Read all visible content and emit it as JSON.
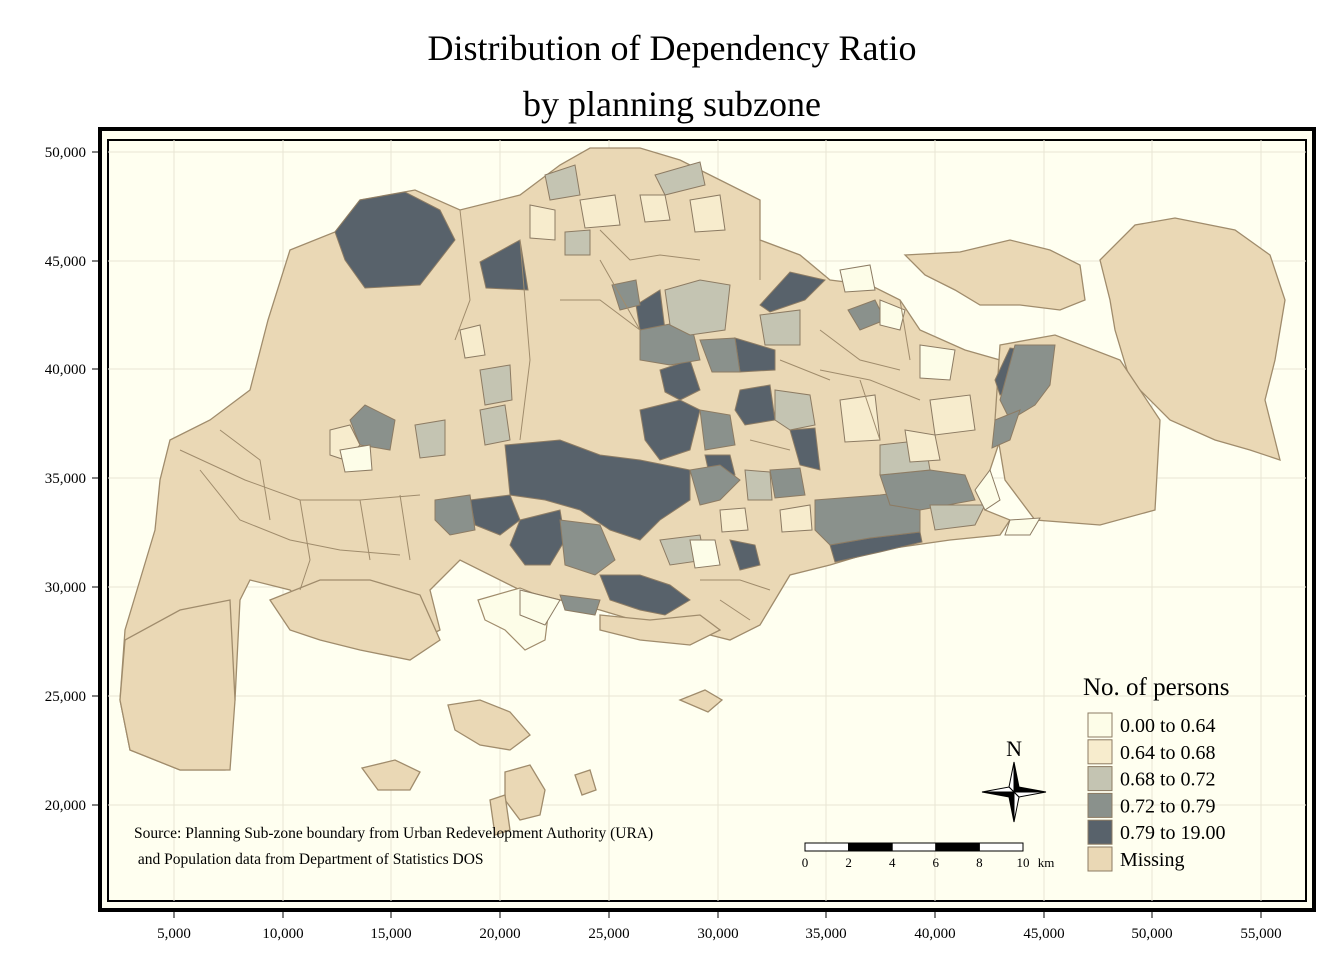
{
  "title_line1": "Distribution of Dependency Ratio",
  "title_line2": "by planning subzone",
  "axes": {
    "x_ticks": [
      "5,000",
      "10,000",
      "15,000",
      "20,000",
      "25,000",
      "30,000",
      "35,000",
      "40,000",
      "45,000",
      "50,000",
      "55,000"
    ],
    "y_ticks": [
      "50,000",
      "45,000",
      "40,000",
      "35,000",
      "30,000",
      "25,000",
      "20,000"
    ]
  },
  "legend": {
    "title": "No. of persons",
    "items": [
      {
        "label": "0.00 to 0.64",
        "color": "#fdfde8"
      },
      {
        "label": "0.64 to 0.68",
        "color": "#f7eccd"
      },
      {
        "label": "0.68 to 0.72",
        "color": "#c4c4b2"
      },
      {
        "label": "0.72 to 0.79",
        "color": "#8a918c"
      },
      {
        "label": "0.79 to 19.00",
        "color": "#58626b"
      },
      {
        "label": "Missing",
        "color": "#ead8b5"
      }
    ]
  },
  "north_arrow": {
    "label": "N"
  },
  "scale_bar": {
    "ticks": [
      "0",
      "2",
      "4",
      "6",
      "8",
      "10"
    ],
    "unit": "km"
  },
  "source_line1": "Source: Planning Sub-zone boundary from Urban Redevelopment Authority (URA)",
  "source_line2": " and Population data from Department of Statistics DOS",
  "colors": {
    "background": "#fffff0",
    "border": "#8c7b63"
  }
}
